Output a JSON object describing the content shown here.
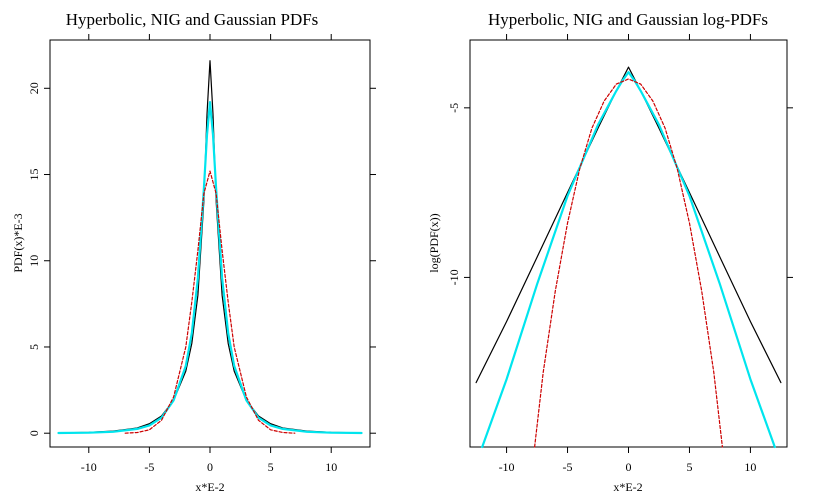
{
  "chart_data": [
    {
      "type": "line",
      "title": "Hyperbolic, NIG and Gaussian PDFs",
      "xlabel": "x*E-2",
      "ylabel": "PDF(x)*E-3",
      "xlim": [
        -13.2,
        13.2
      ],
      "ylim": [
        -0.8,
        22.8
      ],
      "x_ticks": [
        -10,
        -5,
        0,
        5,
        10
      ],
      "y_ticks": [
        0,
        5,
        10,
        15,
        20
      ],
      "x_tick_labels": [
        "-10",
        "-5",
        "0",
        "5",
        "10"
      ],
      "y_tick_labels": [
        "0",
        "5",
        "10",
        "15",
        "20"
      ],
      "grid": false,
      "series": [
        {
          "color": "#000000",
          "dash": "solid",
          "points": [
            [
              -12.5,
              0.02
            ],
            [
              -10,
              0.05
            ],
            [
              -8,
              0.12
            ],
            [
              -6,
              0.3
            ],
            [
              -5,
              0.55
            ],
            [
              -4,
              1.0
            ],
            [
              -3,
              1.9
            ],
            [
              -2,
              3.6
            ],
            [
              -1.5,
              5.2
            ],
            [
              -1,
              8.0
            ],
            [
              -0.5,
              13.5
            ],
            [
              -0.25,
              18.5
            ],
            [
              0,
              21.6
            ],
            [
              0.25,
              18.5
            ],
            [
              0.5,
              13.5
            ],
            [
              1,
              8.0
            ],
            [
              1.5,
              5.2
            ],
            [
              2,
              3.6
            ],
            [
              3,
              1.9
            ],
            [
              4,
              1.0
            ],
            [
              5,
              0.55
            ],
            [
              6,
              0.3
            ],
            [
              8,
              0.12
            ],
            [
              10,
              0.05
            ],
            [
              12.5,
              0.02
            ]
          ]
        },
        {
          "color": "#00e5ee",
          "dash": "solid",
          "points": [
            [
              -12.5,
              0.01
            ],
            [
              -10,
              0.03
            ],
            [
              -8,
              0.08
            ],
            [
              -6,
              0.25
            ],
            [
              -5,
              0.45
            ],
            [
              -4,
              0.9
            ],
            [
              -3,
              1.9
            ],
            [
              -2,
              3.9
            ],
            [
              -1.5,
              5.8
            ],
            [
              -1,
              9.0
            ],
            [
              -0.5,
              14.2
            ],
            [
              -0.25,
              17.3
            ],
            [
              0,
              19.2
            ],
            [
              0.25,
              17.3
            ],
            [
              0.5,
              14.2
            ],
            [
              1,
              9.0
            ],
            [
              1.5,
              5.8
            ],
            [
              2,
              3.9
            ],
            [
              3,
              1.9
            ],
            [
              4,
              0.9
            ],
            [
              5,
              0.45
            ],
            [
              6,
              0.25
            ],
            [
              8,
              0.08
            ],
            [
              10,
              0.03
            ],
            [
              12.5,
              0.01
            ]
          ]
        },
        {
          "color": "#cc0000",
          "dash": "dashed",
          "points": [
            [
              -7,
              0.0
            ],
            [
              -6,
              0.04
            ],
            [
              -5,
              0.2
            ],
            [
              -4,
              0.75
            ],
            [
              -3,
              2.1
            ],
            [
              -2,
              5.0
            ],
            [
              -1.5,
              7.6
            ],
            [
              -1,
              10.6
            ],
            [
              -0.5,
              13.9
            ],
            [
              0,
              15.2
            ],
            [
              0.5,
              13.9
            ],
            [
              1,
              10.6
            ],
            [
              1.5,
              7.6
            ],
            [
              2,
              5.0
            ],
            [
              3,
              2.1
            ],
            [
              4,
              0.75
            ],
            [
              5,
              0.2
            ],
            [
              6,
              0.04
            ],
            [
              7,
              0.0
            ]
          ]
        }
      ]
    },
    {
      "type": "line",
      "title": "Hyperbolic, NIG and Gaussian log-PDFs",
      "xlabel": "x*E-2",
      "ylabel": "log(PDF(x))",
      "xlim": [
        -13.0,
        13.0
      ],
      "ylim": [
        -15.0,
        -3.0
      ],
      "x_ticks": [
        -10,
        -5,
        0,
        5,
        10
      ],
      "y_ticks": [
        -5,
        -10
      ],
      "x_tick_labels": [
        "-10",
        "-5",
        "0",
        "5",
        "10"
      ],
      "y_tick_labels": [
        "-5",
        "-10"
      ],
      "grid": false,
      "series": [
        {
          "color": "#000000",
          "dash": "solid",
          "points": [
            [
              -12.5,
              -13.1
            ],
            [
              -10,
              -11.3
            ],
            [
              -7.5,
              -9.4
            ],
            [
              -5,
              -7.5
            ],
            [
              -2.5,
              -5.6
            ],
            [
              -1,
              -4.5
            ],
            [
              -0.5,
              -4.15
            ],
            [
              0,
              -3.8
            ],
            [
              0.5,
              -4.15
            ],
            [
              1,
              -4.5
            ],
            [
              2.5,
              -5.6
            ],
            [
              5,
              -7.5
            ],
            [
              7.5,
              -9.4
            ],
            [
              10,
              -11.3
            ],
            [
              12.5,
              -13.1
            ]
          ]
        },
        {
          "color": "#00e5ee",
          "dash": "solid",
          "points": [
            [
              -12,
              -15.0
            ],
            [
              -10,
              -13.0
            ],
            [
              -7.5,
              -10.2
            ],
            [
              -5,
              -7.6
            ],
            [
              -2.5,
              -5.5
            ],
            [
              -1,
              -4.5
            ],
            [
              -0.5,
              -4.2
            ],
            [
              0,
              -3.95
            ],
            [
              0.5,
              -4.2
            ],
            [
              1,
              -4.5
            ],
            [
              2.5,
              -5.5
            ],
            [
              5,
              -7.6
            ],
            [
              7.5,
              -10.2
            ],
            [
              10,
              -13.0
            ],
            [
              12,
              -15.0
            ]
          ]
        },
        {
          "color": "#cc0000",
          "dash": "dashed",
          "points": [
            [
              -7.7,
              -15.0
            ],
            [
              -7,
              -12.8
            ],
            [
              -6,
              -10.4
            ],
            [
              -5,
              -8.4
            ],
            [
              -4,
              -6.8
            ],
            [
              -3,
              -5.6
            ],
            [
              -2,
              -4.8
            ],
            [
              -1,
              -4.3
            ],
            [
              0,
              -4.15
            ],
            [
              1,
              -4.3
            ],
            [
              2,
              -4.8
            ],
            [
              3,
              -5.6
            ],
            [
              4,
              -6.8
            ],
            [
              5,
              -8.4
            ],
            [
              6,
              -10.4
            ],
            [
              7,
              -12.8
            ],
            [
              7.7,
              -15.0
            ]
          ]
        }
      ]
    }
  ]
}
